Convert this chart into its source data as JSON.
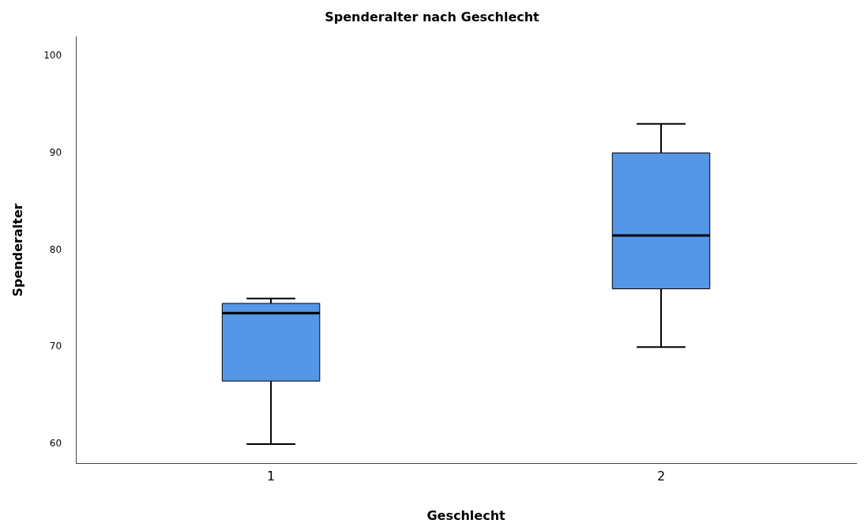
{
  "chart_data": {
    "type": "box",
    "title": "Spenderalter nach Geschlecht",
    "xlabel": "Geschlecht",
    "ylabel": "Spenderalter",
    "categories": [
      "1",
      "2"
    ],
    "color": "#5596e6",
    "boxes": [
      {
        "low": 60,
        "q1": 66.5,
        "median": 73.5,
        "q3": 74.5,
        "high": 75
      },
      {
        "low": 70,
        "q1": 76,
        "median": 81.5,
        "q3": 90,
        "high": 93
      }
    ],
    "ylim": [
      58,
      102
    ],
    "yticks": [
      60,
      70,
      80,
      90,
      100
    ],
    "grid": false,
    "legend": false
  }
}
